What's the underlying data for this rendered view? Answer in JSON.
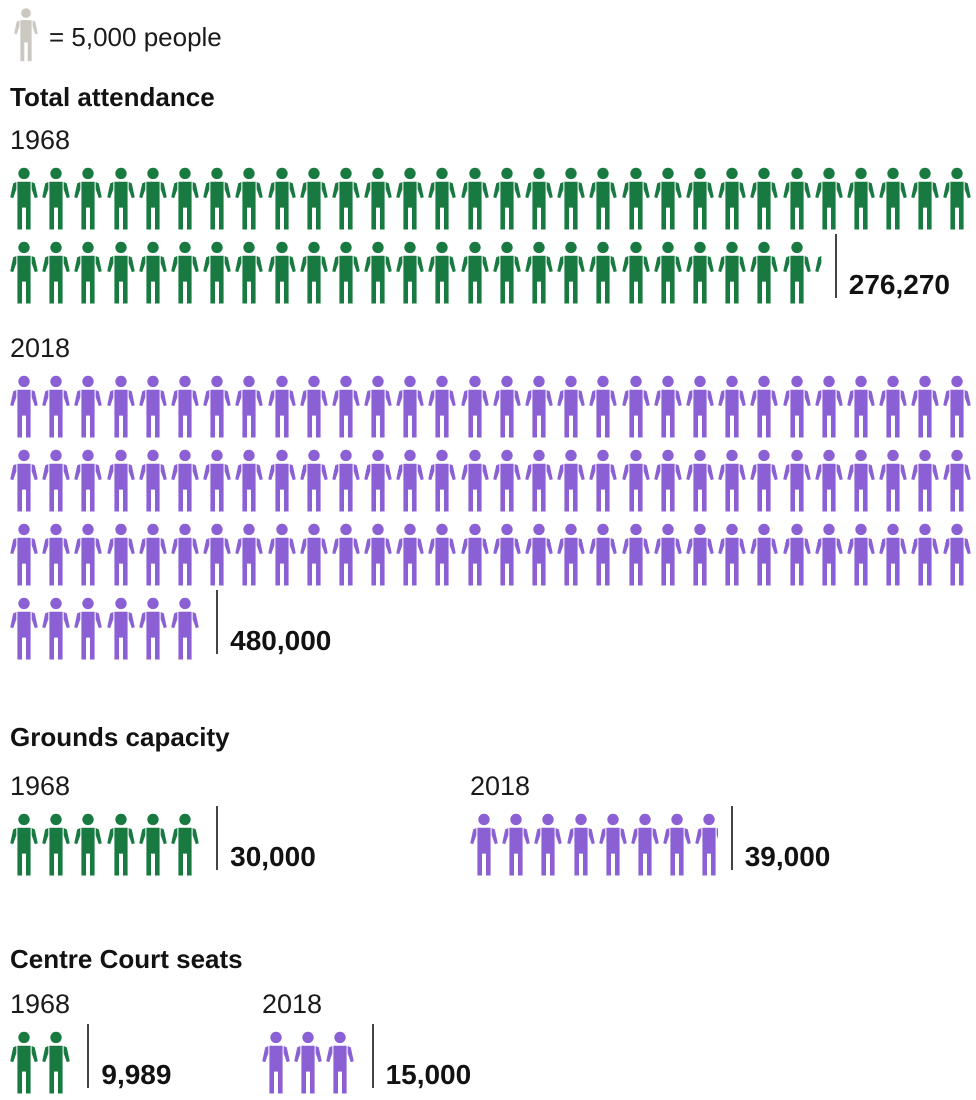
{
  "legend": {
    "label": "= 5,000 people",
    "icon_color": "#cbc8bf"
  },
  "colors": {
    "green": "#187a41",
    "purple": "#8a60d4",
    "text": "#141414",
    "separator": "#444444"
  },
  "chart_data": {
    "type": "pictogram",
    "unit_per_icon": 5000,
    "icons_per_row": 30,
    "legend_label": "= 5,000 people",
    "sections": [
      {
        "title": "Total attendance",
        "groups": [
          {
            "year": "1968",
            "value": 276270,
            "display": "276,270",
            "color": "green"
          },
          {
            "year": "2018",
            "value": 480000,
            "display": "480,000",
            "color": "purple"
          }
        ]
      },
      {
        "title": "Grounds capacity",
        "groups": [
          {
            "year": "1968",
            "value": 30000,
            "display": "30,000",
            "color": "green"
          },
          {
            "year": "2018",
            "value": 39000,
            "display": "39,000",
            "color": "purple"
          }
        ]
      },
      {
        "title": "Centre Court seats",
        "groups": [
          {
            "year": "1968",
            "value": 9989,
            "display": "9,989",
            "color": "green"
          },
          {
            "year": "2018",
            "value": 15000,
            "display": "15,000",
            "color": "purple"
          }
        ]
      }
    ]
  }
}
